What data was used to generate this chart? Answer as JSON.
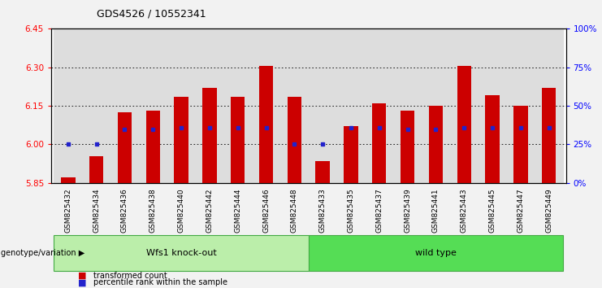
{
  "title": "GDS4526 / 10552341",
  "categories": [
    "GSM825432",
    "GSM825434",
    "GSM825436",
    "GSM825438",
    "GSM825440",
    "GSM825442",
    "GSM825444",
    "GSM825446",
    "GSM825448",
    "GSM825433",
    "GSM825435",
    "GSM825437",
    "GSM825439",
    "GSM825441",
    "GSM825443",
    "GSM825445",
    "GSM825447",
    "GSM825449"
  ],
  "red_values": [
    5.873,
    5.953,
    6.125,
    6.13,
    6.185,
    6.22,
    6.185,
    6.305,
    6.185,
    5.935,
    6.07,
    6.16,
    6.13,
    6.15,
    6.305,
    6.19,
    6.15,
    6.22
  ],
  "blue_values": [
    6.0,
    6.0,
    6.06,
    6.06,
    6.065,
    6.065,
    6.065,
    6.065,
    6.0,
    6.0,
    6.065,
    6.065,
    6.06,
    6.06,
    6.065,
    6.065,
    6.065,
    6.065
  ],
  "ylim_left": [
    5.85,
    6.45
  ],
  "ylim_right": [
    0,
    100
  ],
  "yticks_left": [
    5.85,
    6.0,
    6.15,
    6.3,
    6.45
  ],
  "yticks_right": [
    0,
    25,
    50,
    75,
    100
  ],
  "ytick_labels_right": [
    "0%",
    "25%",
    "50%",
    "75%",
    "100%"
  ],
  "grid_values": [
    6.0,
    6.15,
    6.3
  ],
  "bar_color": "#cc0000",
  "dot_color": "#2222cc",
  "background_plot": "#ffffff",
  "xticklabel_bg": "#dddddd",
  "group1_label": "Wfs1 knock-out",
  "group2_label": "wild type",
  "group1_color": "#bbeeaa",
  "group2_color": "#55dd55",
  "group1_count": 9,
  "group2_count": 9,
  "genotype_label": "genotype/variation",
  "legend1": "transformed count",
  "legend2": "percentile rank within the sample",
  "baseline": 5.85,
  "fig_bg": "#f2f2f2"
}
